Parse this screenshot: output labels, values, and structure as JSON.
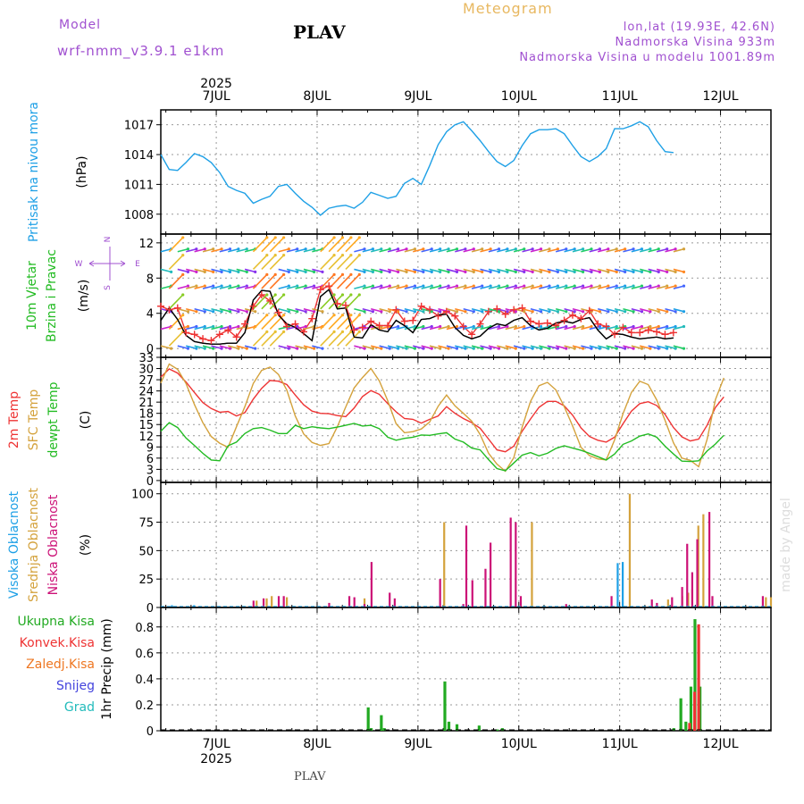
{
  "header": {
    "model_label": "Model",
    "model_name": "wrf-nmm_v3.9.1 e1km",
    "station": "PLAV",
    "product": "Meteogram",
    "lonlat": "lon,lat (19.93E, 42.6N)",
    "elevation": "Nadmorska Visina 933m",
    "model_elevation": "Nadmorska Visina u modelu 1001.89m"
  },
  "footer": {
    "station": "PLAV",
    "watermark": "made by Angel"
  },
  "colors": {
    "pressure": "#1ea0e6",
    "t2m": "#ee3333",
    "sfc": "#d4a23c",
    "dewpt": "#22bb22",
    "wind_speed": "#000000",
    "gust": "#ee3333",
    "high_cloud": "#1ea0e6",
    "mid_cloud": "#d4a23c",
    "low_cloud": "#cc1177",
    "total_precip": "#22aa22",
    "conv_precip": "#ee3333",
    "frozen": "#ee7722",
    "snow": "#4444dd",
    "hail": "#22bbbb"
  },
  "time_axis": {
    "year": "2025",
    "days": [
      "7JUL",
      "8JUL",
      "9JUL",
      "10JUL",
      "11JUL",
      "12JUL"
    ],
    "day_index": [
      0,
      1,
      2,
      3,
      4,
      5
    ],
    "range": [
      -0.55,
      5.5
    ],
    "step_hours": 2
  },
  "wind_legend": {
    "n": "N",
    "s": "S",
    "e": "E",
    "w": "W"
  },
  "chart_data": [
    {
      "id": "pressure",
      "type": "line",
      "ylabel": [
        "Pritisak na nivou mora",
        "(hPa)"
      ],
      "yticks": [
        1008,
        1011,
        1014,
        1017
      ],
      "ylim": [
        1006,
        1018.5
      ],
      "grid": true,
      "x_start": -0.55,
      "x_step_hours": 2,
      "series": [
        {
          "color_key": "pressure",
          "values": [
            1014,
            1012.5,
            1012.4,
            1013.2,
            1014.1,
            1013.8,
            1013.2,
            1012.2,
            1010.8,
            1010.4,
            1010.1,
            1009.1,
            1009.5,
            1009.8,
            1010.8,
            1011,
            1010.1,
            1009.3,
            1008.7,
            1007.9,
            1008.6,
            1008.8,
            1008.9,
            1008.6,
            1009.2,
            1010.2,
            1009.9,
            1009.6,
            1009.8,
            1011.1,
            1011.6,
            1011,
            1012.9,
            1015,
            1016.3,
            1017,
            1017.3,
            1016.4,
            1015.4,
            1014.3,
            1013.3,
            1012.8,
            1013.4,
            1014.9,
            1016.1,
            1016.5,
            1016.5,
            1016.6,
            1016.1,
            1014.9,
            1013.8,
            1013.3,
            1013.8,
            1014.6,
            1016.6,
            1016.6,
            1016.9,
            1017.3,
            1016.8,
            1015.4,
            1014.3,
            1014.2
          ]
        }
      ]
    },
    {
      "id": "wind",
      "type": "line",
      "ylabel": [
        "10m Vjetar",
        "Brzina i Pravac",
        "(m/s)"
      ],
      "yticks": [
        0,
        4,
        8,
        12
      ],
      "ylim": [
        -1,
        13
      ],
      "grid": true,
      "x_start": -0.55,
      "x_step_hours": 2,
      "series": [
        {
          "name": "speed",
          "color_key": "wind_speed",
          "values": [
            3.2,
            4.6,
            3.3,
            1.5,
            0.8,
            0.6,
            0.5,
            0.5,
            0.6,
            0.6,
            1.8,
            5.5,
            6.6,
            6.5,
            3.8,
            2.8,
            2.4,
            1.7,
            0.9,
            5.9,
            6.7,
            4.5,
            4.6,
            1.3,
            1.2,
            2.7,
            2.1,
            1.9,
            3.2,
            2.6,
            1.8,
            3.3,
            3.4,
            3.8,
            3.9,
            2.4,
            1.5,
            1.1,
            1.4,
            2.3,
            2.8,
            2.6,
            3.2,
            3.5,
            2.6,
            2.1,
            2.3,
            2.9,
            3.1,
            2.9,
            3.3,
            3.5,
            2.1,
            1.1,
            1.7,
            1.6,
            1.3,
            1.1,
            1.2,
            1.3,
            1.1,
            1.2
          ]
        },
        {
          "name": "gust",
          "color_key": "gust",
          "values": [
            4.8,
            4.4,
            4.6,
            1.8,
            1.6,
            1.1,
            0.9,
            1.6,
            2.1,
            1.3,
            2.8,
            4.8,
            6.1,
            5.4,
            4.1,
            2.5,
            2.8,
            1.9,
            3.4,
            6.7,
            7.1,
            5.1,
            4.9,
            2.1,
            2.4,
            3.1,
            2.6,
            2.6,
            4.4,
            3.1,
            3.2,
            4.8,
            4.4,
            3.7,
            4.2,
            3.7,
            2.5,
            1.6,
            2.8,
            4.2,
            4.5,
            3.9,
            4.4,
            4.6,
            3.1,
            2.8,
            2.9,
            2.6,
            3.2,
            3.8,
            3.4,
            4.3,
            2.8,
            2.5,
            1.6,
            2.4,
            1.8,
            1.8,
            2.1,
            1.9,
            1.6,
            1.8
          ]
        }
      ]
    },
    {
      "id": "temperature",
      "type": "line",
      "ylabel": [
        "2m Temp",
        "SFC Temp",
        "dewpt Temp",
        "(C)"
      ],
      "yticks": [
        0,
        3,
        6,
        9,
        12,
        15,
        18,
        21,
        24,
        27,
        30,
        33
      ],
      "ylim": [
        -0.5,
        33
      ],
      "grid": true,
      "x_start": -0.55,
      "x_step_hours": 2,
      "series": [
        {
          "name": "2m",
          "color_key": "t2m",
          "values": [
            27.7,
            29.9,
            28.8,
            26.4,
            23.6,
            20.9,
            19.3,
            18.3,
            18.5,
            17.3,
            18.2,
            21.8,
            24.7,
            26.8,
            26.6,
            25.7,
            22.9,
            20.3,
            18.6,
            18,
            17.9,
            17.4,
            17.1,
            19.4,
            22.5,
            24.1,
            23.1,
            20.6,
            18.4,
            16.6,
            16.4,
            15.4,
            16.4,
            17.3,
            19.8,
            18,
            16.6,
            15.5,
            14,
            11.1,
            8.2,
            7.7,
            9.2,
            13.2,
            16.5,
            19.6,
            21.2,
            21.2,
            20,
            17.5,
            14.1,
            11.8,
            10.8,
            10.3,
            11.6,
            15.2,
            18.6,
            20.6,
            21.1,
            20.1,
            17.7,
            14.2,
            11.7,
            10.6,
            11.1,
            14.8,
            19.6,
            22.4
          ]
        },
        {
          "name": "sfc",
          "color_key": "sfc",
          "values": [
            26.1,
            31.2,
            29.8,
            26,
            20.4,
            15.5,
            11.8,
            10,
            8.9,
            14.4,
            19.8,
            26,
            29.5,
            30.4,
            28.4,
            24.2,
            17.3,
            12.5,
            10.2,
            9.4,
            9.9,
            14.4,
            19.7,
            24.8,
            27.6,
            30,
            26.7,
            21.4,
            15.2,
            12.8,
            13.1,
            13.8,
            15.7,
            19.9,
            22.9,
            20,
            18,
            15.9,
            12.3,
            7.3,
            4.4,
            2.5,
            6.1,
            14.3,
            21.2,
            25.4,
            26.3,
            24.3,
            19.8,
            14.6,
            8.9,
            6.7,
            5.8,
            5.5,
            10.9,
            17.9,
            23.6,
            26.6,
            25.7,
            21.6,
            16.1,
            10.1,
            6,
            5.4,
            3.7,
            11,
            21.7,
            27.5
          ]
        },
        {
          "name": "dewpt",
          "color_key": "dewpt",
          "values": [
            13.2,
            15.5,
            14.2,
            11.4,
            9.4,
            7.3,
            5.5,
            5.3,
            9.3,
            10.3,
            12.6,
            13.9,
            14.2,
            13.5,
            12.6,
            12.6,
            14.8,
            13.9,
            14.4,
            14.1,
            13.9,
            14.3,
            14.8,
            15.3,
            14.6,
            14.8,
            13.9,
            11.6,
            10.8,
            11.3,
            11.6,
            12.2,
            12.1,
            12.5,
            12.8,
            11.1,
            10.3,
            8.7,
            8.2,
            5.6,
            3.2,
            2.6,
            4.7,
            6.8,
            7.5,
            6.6,
            7.3,
            8.6,
            9.3,
            8.7,
            8.1,
            7.3,
            6.4,
            5.5,
            7.1,
            9.7,
            10.6,
            11.9,
            12.5,
            11.6,
            9.2,
            7.1,
            5.2,
            5.1,
            5.3,
            7.9,
            9.8,
            12.1
          ]
        }
      ]
    },
    {
      "id": "clouds",
      "type": "bar",
      "ylabel": [
        "Visoka Oblacnost",
        "Srednja Oblacnost",
        "Niska Oblacnost",
        "(%)"
      ],
      "yticks": [
        0,
        25,
        50,
        75,
        100
      ],
      "ylim": [
        0,
        110
      ],
      "grid": true,
      "series": [
        {
          "name": "high",
          "color_key": "high_cloud",
          "points": [
            [
              -0.42,
              2
            ],
            [
              -0.2,
              2
            ],
            [
              4.0,
              39
            ],
            [
              4.05,
              40
            ]
          ]
        },
        {
          "name": "mid",
          "color_key": "mid_cloud",
          "points": [
            [
              0.4,
              6
            ],
            [
              0.5,
              8
            ],
            [
              0.55,
              10
            ],
            [
              0.7,
              9
            ],
            [
              1.47,
              8
            ],
            [
              2.26,
              75
            ],
            [
              3.13,
              75
            ],
            [
              4.1,
              100
            ],
            [
              4.48,
              7
            ],
            [
              4.62,
              10
            ],
            [
              4.68,
              13
            ],
            [
              4.72,
              16
            ],
            [
              4.78,
              72
            ],
            [
              4.83,
              82
            ],
            [
              5.45,
              9
            ],
            [
              5.5,
              9
            ]
          ]
        },
        {
          "name": "low",
          "color_key": "low_cloud",
          "points": [
            [
              0.35,
              6
            ],
            [
              0.45,
              8
            ],
            [
              0.6,
              10
            ],
            [
              0.65,
              10
            ],
            [
              1.45,
              3
            ],
            [
              1.1,
              4
            ],
            [
              1.3,
              10
            ],
            [
              1.35,
              9
            ],
            [
              1.52,
              40
            ],
            [
              1.7,
              13
            ],
            [
              1.75,
              8
            ],
            [
              2.2,
              25
            ],
            [
              2.43,
              3
            ],
            [
              2.46,
              72
            ],
            [
              2.52,
              24
            ],
            [
              2.65,
              34
            ],
            [
              2.7,
              57
            ],
            [
              2.9,
              79
            ],
            [
              2.95,
              75
            ],
            [
              3.0,
              10
            ],
            [
              3.45,
              3
            ],
            [
              3.9,
              10
            ],
            [
              4.3,
              7
            ],
            [
              4.35,
              4
            ],
            [
              4.5,
              9
            ],
            [
              4.6,
              18
            ],
            [
              4.65,
              56
            ],
            [
              4.7,
              31
            ],
            [
              4.75,
              60
            ],
            [
              4.87,
              84
            ],
            [
              4.9,
              10
            ],
            [
              5.4,
              10
            ]
          ]
        }
      ]
    },
    {
      "id": "precip",
      "type": "bar",
      "ylabel": [
        "1hr Precip (mm)"
      ],
      "legend": [
        "Ukupna Kisa",
        "Konvek.Kisa",
        "Zaledj.Kisa",
        "Snijeg",
        "Grad"
      ],
      "yticks": [
        0,
        0.2,
        0.4,
        0.6,
        0.8
      ],
      "ylim": [
        0,
        0.95
      ],
      "grid": true,
      "series": [
        {
          "name": "total",
          "color_key": "total_precip",
          "points": [
            [
              1.52,
              0.18
            ],
            [
              1.55,
              0.02
            ],
            [
              1.65,
              0.12
            ],
            [
              1.68,
              0.02
            ],
            [
              2.28,
              0.38
            ],
            [
              2.32,
              0.07
            ],
            [
              2.4,
              0.05
            ],
            [
              2.62,
              0.04
            ],
            [
              2.8,
              0.01
            ],
            [
              2.85,
              0.02
            ],
            [
              4.55,
              0.02
            ],
            [
              4.62,
              0.25
            ],
            [
              4.67,
              0.07
            ],
            [
              4.72,
              0.34
            ],
            [
              4.76,
              0.86
            ],
            [
              4.81,
              0.34
            ]
          ]
        },
        {
          "name": "conv",
          "color_key": "conv_precip",
          "points": [
            [
              4.68,
              0.06
            ],
            [
              4.73,
              0.3
            ],
            [
              4.77,
              0.82
            ]
          ]
        }
      ]
    }
  ]
}
